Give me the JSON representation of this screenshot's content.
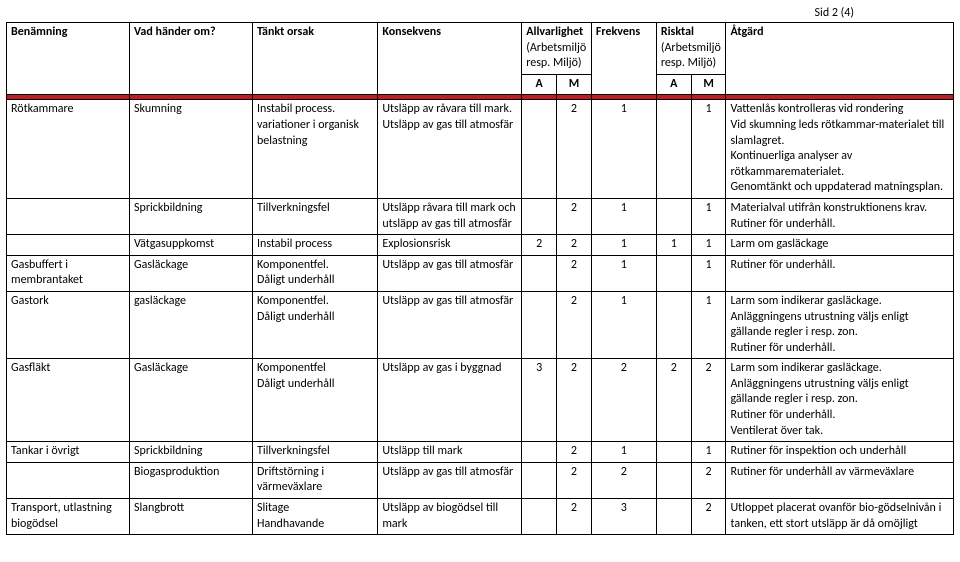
{
  "page_label": "Sid 2 (4)",
  "colors": {
    "header_bg": "#bf1e24",
    "border": "#000000",
    "text": "#000000",
    "bg": "#ffffff"
  },
  "headers": {
    "benamning": "Benämning",
    "vad": "Vad händer om?",
    "tankt": "Tänkt orsak",
    "konsekvens": "Konsekvens",
    "allvarlighet": "Allvarlighet",
    "allvarlighet_sub": "(Arbetsmiljö resp. Miljö)",
    "frekvens": "Frekvens",
    "risktal": "Risktal",
    "risktal_sub": "(Arbetsmiljö resp. Miljö)",
    "atgard": "Åtgärd",
    "A": "A",
    "M": "M"
  },
  "rows": [
    {
      "ben": "Rötkammare",
      "vad": "Skumning",
      "tan": "Instabil process. variationer i organisk belastning",
      "kon": "Utsläpp av råvara till mark.\nUtsläpp av gas till atmosfär",
      "a1": "",
      "m1": "2",
      "frk": "1",
      "a2": "",
      "m2": "1",
      "atg": "Vattenlås kontrolleras vid rondering\nVid skumning leds rötkammar-materialet till slamlagret.\nKontinuerliga analyser av rötkammarematerialet.\nGenomtänkt och uppdaterad matningsplan."
    },
    {
      "ben": "",
      "vad": "Sprickbildning",
      "tan": "Tillverkningsfel",
      "kon": "Utsläpp råvara till mark och utsläpp av gas till atmosfär",
      "a1": "",
      "m1": "2",
      "frk": "1",
      "a2": "",
      "m2": "1",
      "atg": "Materialval utifrån konstruktionens krav.\nRutiner för underhåll."
    },
    {
      "ben": "",
      "vad": "Vätgasuppkomst",
      "tan": "Instabil process",
      "kon": "Explosionsrisk",
      "a1": "2",
      "m1": "2",
      "frk": "1",
      "a2": "1",
      "m2": "1",
      "atg": "Larm om gasläckage"
    },
    {
      "ben": "Gasbuffert i membrantaket",
      "vad": "Gasläckage",
      "tan": "Komponentfel.\nDåligt underhåll",
      "kon": "Utsläpp av gas till atmosfär",
      "a1": "",
      "m1": "2",
      "frk": "1",
      "a2": "",
      "m2": "1",
      "atg": "Rutiner för underhåll."
    },
    {
      "ben": "Gastork",
      "vad": "gasläckage",
      "tan": "Komponentfel.\nDåligt underhåll",
      "kon": "Utsläpp av gas till atmosfär",
      "a1": "",
      "m1": "2",
      "frk": "1",
      "a2": "",
      "m2": "1",
      "atg": "Larm som indikerar gasläckage.\nAnläggningens utrustning väljs enligt gällande regler i resp. zon.\nRutiner för underhåll."
    },
    {
      "ben": "Gasfläkt",
      "vad": "Gasläckage",
      "tan": "Komponentfel\nDåligt underhåll",
      "kon": "Utsläpp av gas i byggnad",
      "a1": "3",
      "m1": "2",
      "frk": "2",
      "a2": "2",
      "m2": "2",
      "atg": "Larm som indikerar gasläckage.\nAnläggningens utrustning väljs enligt gällande regler i resp. zon.\nRutiner för underhåll.\nVentilerat över tak."
    },
    {
      "ben": "Tankar i övrigt",
      "vad": "Sprickbildning",
      "tan": "Tillverkningsfel",
      "kon": "Utsläpp till mark",
      "a1": "",
      "m1": "2",
      "frk": "1",
      "a2": "",
      "m2": "1",
      "atg": "Rutiner för inspektion och underhåll"
    },
    {
      "ben": "",
      "vad": "Biogasproduktion",
      "tan": "Driftstörning i värmeväxlare",
      "kon": "Utsläpp av gas till atmosfär",
      "a1": "",
      "m1": "2",
      "frk": "2",
      "a2": "",
      "m2": "2",
      "atg": "Rutiner för underhåll av värmeväxlare"
    },
    {
      "ben": "Transport, utlastning biogödsel",
      "vad": "Slangbrott",
      "tan": "Slitage\nHandhavande",
      "kon": "Utsläpp av biogödsel till mark",
      "a1": "",
      "m1": "2",
      "frk": "3",
      "a2": "",
      "m2": "2",
      "atg": "Utloppet placerat ovanför bio-gödselnivån i tanken, ett stort utsläpp är då omöjligt"
    }
  ]
}
